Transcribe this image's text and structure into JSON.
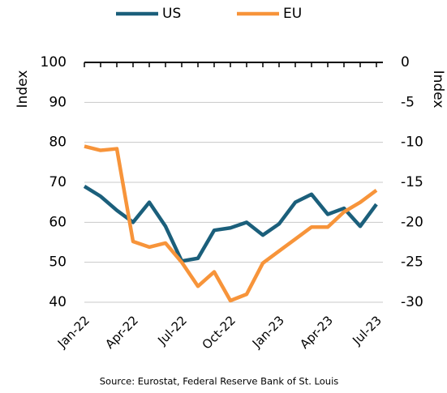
{
  "chart_data": {
    "type": "line",
    "categories": [
      "Jan-22",
      null,
      null,
      "Apr-22",
      null,
      null,
      "Jul-22",
      null,
      null,
      "Oct-22",
      null,
      null,
      "Jan-23",
      null,
      null,
      "Apr-23",
      null,
      null,
      "Jul-23"
    ],
    "series": [
      {
        "name": "US",
        "color": "#1b5f7b",
        "values": [
          69,
          66.5,
          63,
          60,
          65,
          59,
          50.3,
          51,
          58,
          58.6,
          60,
          56.8,
          59.6,
          65,
          67,
          62,
          63.5,
          59,
          64.5
        ]
      },
      {
        "name": "EU",
        "color": "#f7943a",
        "axis": "y2",
        "values": [
          -10.5,
          -11,
          -10.8,
          -22.4,
          -23.1,
          -22.6,
          -25,
          -28,
          -26.2,
          -29.8,
          -29,
          -25.1,
          -23.6,
          -22.1,
          -20.6,
          -20.6,
          -18.7,
          -17.5,
          -16
        ]
      }
    ],
    "ylabel": "Index",
    "y2label": "Index",
    "ylim": [
      40,
      100
    ],
    "yticks": [
      40,
      50,
      60,
      70,
      80,
      90,
      100
    ],
    "y2lim": [
      -30,
      0
    ],
    "y2ticks": [
      -30,
      -25,
      -20,
      -15,
      -10,
      -5,
      0
    ],
    "grid": true,
    "legend": "top",
    "source": "Source: Eurostat, Federal Reserve Bank of St. Louis"
  }
}
